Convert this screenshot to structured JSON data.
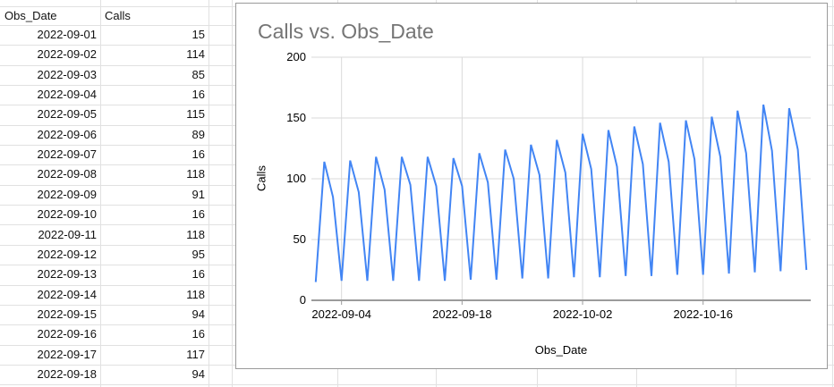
{
  "table": {
    "headers": [
      "Obs_Date",
      "Calls"
    ],
    "rows": [
      [
        "2022-09-01",
        "15"
      ],
      [
        "2022-09-02",
        "114"
      ],
      [
        "2022-09-03",
        "85"
      ],
      [
        "2022-09-04",
        "16"
      ],
      [
        "2022-09-05",
        "115"
      ],
      [
        "2022-09-06",
        "89"
      ],
      [
        "2022-09-07",
        "16"
      ],
      [
        "2022-09-08",
        "118"
      ],
      [
        "2022-09-09",
        "91"
      ],
      [
        "2022-09-10",
        "16"
      ],
      [
        "2022-09-11",
        "118"
      ],
      [
        "2022-09-12",
        "95"
      ],
      [
        "2022-09-13",
        "16"
      ],
      [
        "2022-09-14",
        "118"
      ],
      [
        "2022-09-15",
        "94"
      ],
      [
        "2022-09-16",
        "16"
      ],
      [
        "2022-09-17",
        "117"
      ],
      [
        "2022-09-18",
        "94"
      ]
    ]
  },
  "chart_data": {
    "type": "line",
    "title": "Calls vs. Obs_Date",
    "xlabel": "Obs_Date",
    "ylabel": "Calls",
    "ylim": [
      0,
      200
    ],
    "y_ticks": [
      0,
      50,
      100,
      150,
      200
    ],
    "x_tick_labels": [
      "2022-09-04",
      "2022-09-18",
      "2022-10-02",
      "2022-10-16"
    ],
    "x_tick_indexes": [
      3,
      17,
      31,
      45
    ],
    "grid": "on",
    "legend": "none",
    "series_color": "#4285f4",
    "title_color": "#757575",
    "x": [
      "2022-09-01",
      "2022-09-02",
      "2022-09-03",
      "2022-09-04",
      "2022-09-05",
      "2022-09-06",
      "2022-09-07",
      "2022-09-08",
      "2022-09-09",
      "2022-09-10",
      "2022-09-11",
      "2022-09-12",
      "2022-09-13",
      "2022-09-14",
      "2022-09-15",
      "2022-09-16",
      "2022-09-17",
      "2022-09-18",
      "2022-09-19",
      "2022-09-20",
      "2022-09-21",
      "2022-09-22",
      "2022-09-23",
      "2022-09-24",
      "2022-09-25",
      "2022-09-26",
      "2022-09-27",
      "2022-09-28",
      "2022-09-29",
      "2022-09-30",
      "2022-10-01",
      "2022-10-02",
      "2022-10-03",
      "2022-10-04",
      "2022-10-05",
      "2022-10-06",
      "2022-10-07",
      "2022-10-08",
      "2022-10-09",
      "2022-10-10",
      "2022-10-11",
      "2022-10-12",
      "2022-10-13",
      "2022-10-14",
      "2022-10-15",
      "2022-10-16",
      "2022-10-17",
      "2022-10-18",
      "2022-10-19",
      "2022-10-20",
      "2022-10-21",
      "2022-10-22",
      "2022-10-23",
      "2022-10-24",
      "2022-10-25",
      "2022-10-26",
      "2022-10-27",
      "2022-10-28"
    ],
    "y": [
      15,
      114,
      85,
      16,
      115,
      89,
      16,
      118,
      91,
      16,
      118,
      95,
      16,
      118,
      94,
      16,
      117,
      94,
      17,
      121,
      97,
      17,
      124,
      100,
      18,
      128,
      103,
      18,
      132,
      105,
      19,
      137,
      108,
      19,
      140,
      110,
      20,
      143,
      112,
      20,
      146,
      114,
      21,
      148,
      116,
      21,
      151,
      118,
      22,
      156,
      121,
      23,
      161,
      123,
      24,
      158,
      124,
      25
    ]
  }
}
